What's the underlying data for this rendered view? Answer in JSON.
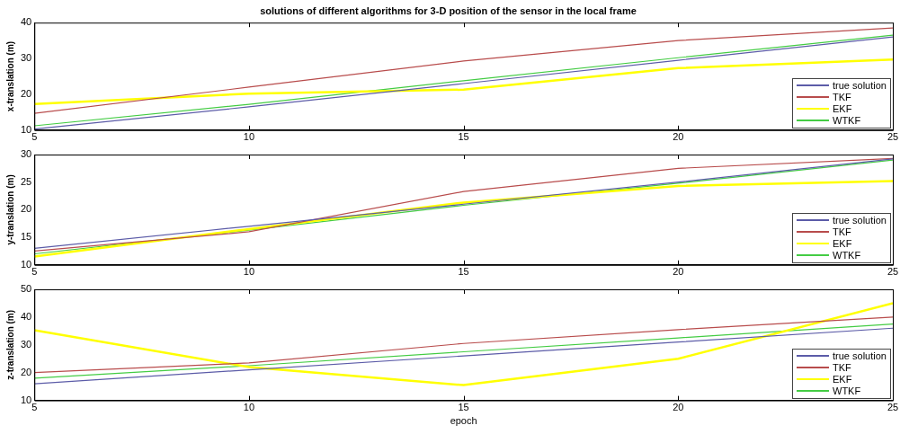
{
  "chart_data": [
    {
      "type": "line",
      "title": "solutions of different algorithms for 3-D position of the sensor in the local frame",
      "ylabel": "x-translation (m)",
      "x": [
        5,
        10,
        15,
        20,
        25
      ],
      "xlim": [
        5,
        25
      ],
      "xticks": [
        5,
        10,
        15,
        20,
        25
      ],
      "ylim": [
        10,
        40
      ],
      "yticks": [
        10,
        20,
        30,
        40
      ],
      "grid": false,
      "legend": "bottom right",
      "marker": "none",
      "line_style": "solid",
      "series": [
        {
          "name": "true solution",
          "color": "#5c5ca8",
          "values": [
            10.3,
            16.5,
            23,
            29.5,
            36
          ]
        },
        {
          "name": "TKF",
          "color": "#b84c4c",
          "values": [
            14.7,
            22,
            29.3,
            35,
            38.5
          ]
        },
        {
          "name": "EKF",
          "color": "#ffff00",
          "values": [
            17.3,
            20.2,
            21.3,
            27.3,
            29.7
          ]
        },
        {
          "name": "WTKF",
          "color": "#44cc44",
          "values": [
            11.2,
            17.2,
            23.8,
            30.2,
            36.5
          ]
        }
      ]
    },
    {
      "type": "line",
      "ylabel": "y-translation (m)",
      "x": [
        5,
        10,
        15,
        20,
        25
      ],
      "xlim": [
        5,
        25
      ],
      "xticks": [
        5,
        10,
        15,
        20,
        25
      ],
      "ylim": [
        10,
        30
      ],
      "yticks": [
        10,
        15,
        20,
        25,
        30
      ],
      "grid": false,
      "legend": "bottom right",
      "marker": "none",
      "line_style": "solid",
      "series": [
        {
          "name": "true solution",
          "color": "#5c5ca8",
          "values": [
            13,
            17,
            21,
            25,
            29.2
          ]
        },
        {
          "name": "TKF",
          "color": "#b84c4c",
          "values": [
            12.5,
            16,
            23.3,
            27.5,
            29.3
          ]
        },
        {
          "name": "EKF",
          "color": "#ffff00",
          "values": [
            11.5,
            16.5,
            21.3,
            24.3,
            25.2
          ]
        },
        {
          "name": "WTKF",
          "color": "#44cc44",
          "values": [
            12,
            16.3,
            20.8,
            24.8,
            29
          ]
        }
      ]
    },
    {
      "type": "line",
      "xlabel": "epoch",
      "ylabel": "z-translation (m)",
      "x": [
        5,
        10,
        15,
        20,
        25
      ],
      "xlim": [
        5,
        25
      ],
      "xticks": [
        5,
        10,
        15,
        20,
        25
      ],
      "ylim": [
        10,
        50
      ],
      "yticks": [
        10,
        20,
        30,
        40,
        50
      ],
      "grid": false,
      "legend": "bottom right",
      "marker": "none",
      "line_style": "solid",
      "series": [
        {
          "name": "true solution",
          "color": "#5c5ca8",
          "values": [
            16,
            21,
            26,
            31,
            36
          ]
        },
        {
          "name": "TKF",
          "color": "#b84c4c",
          "values": [
            20,
            23.5,
            30.5,
            35.5,
            40
          ]
        },
        {
          "name": "EKF",
          "color": "#ffff00",
          "values": [
            35.3,
            22,
            15.5,
            25,
            45
          ]
        },
        {
          "name": "WTKF",
          "color": "#44cc44",
          "values": [
            18,
            22.5,
            27.5,
            32.5,
            37.5
          ]
        }
      ]
    }
  ]
}
